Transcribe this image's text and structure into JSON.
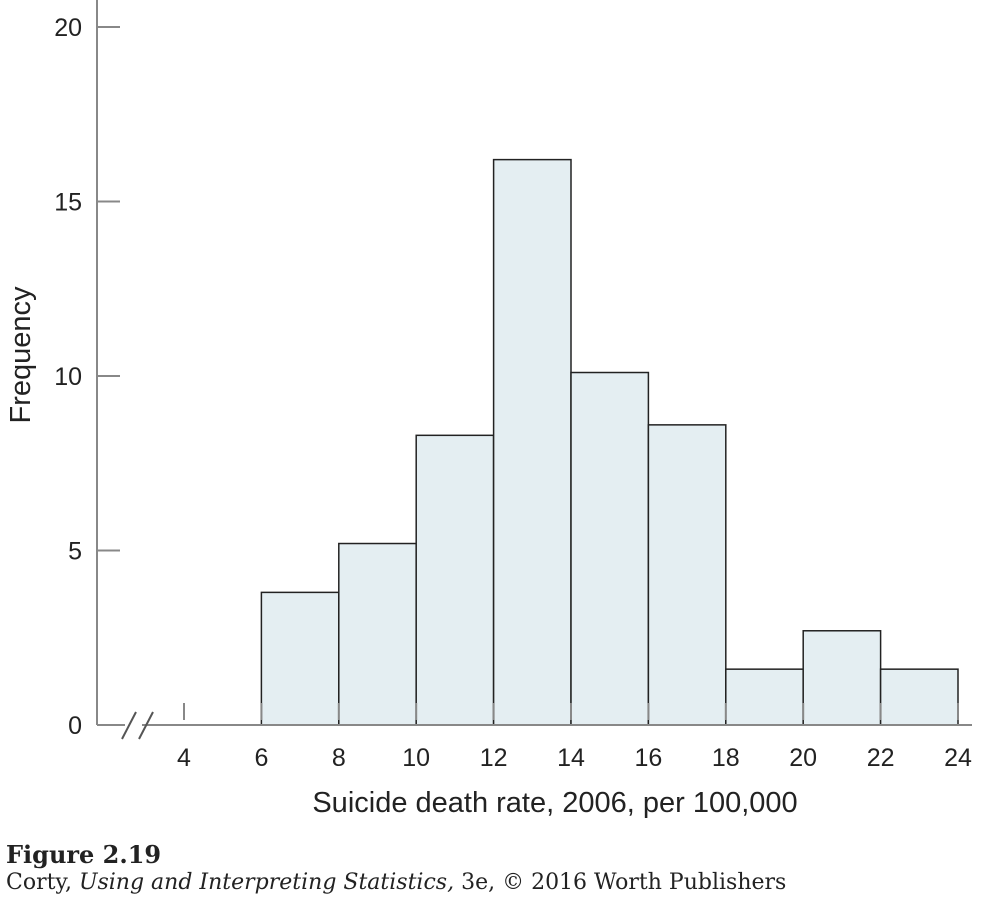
{
  "chart_data": {
    "type": "bar",
    "histogram": true,
    "bins": [
      {
        "start": 6,
        "end": 8,
        "frequency": 3.8
      },
      {
        "start": 8,
        "end": 10,
        "frequency": 5.2
      },
      {
        "start": 10,
        "end": 12,
        "frequency": 8.3
      },
      {
        "start": 12,
        "end": 14,
        "frequency": 16.2
      },
      {
        "start": 14,
        "end": 16,
        "frequency": 10.1
      },
      {
        "start": 16,
        "end": 18,
        "frequency": 8.6
      },
      {
        "start": 18,
        "end": 20,
        "frequency": 1.6
      },
      {
        "start": 20,
        "end": 22,
        "frequency": 2.7
      },
      {
        "start": 22,
        "end": 24,
        "frequency": 1.6
      }
    ],
    "x_ticks": [
      "4",
      "6",
      "8",
      "10",
      "12",
      "14",
      "16",
      "18",
      "20",
      "22",
      "24"
    ],
    "y_ticks": [
      "0",
      "5",
      "10",
      "15",
      "20"
    ],
    "xlabel": "Suicide death rate, 2006, per 100,000",
    "ylabel": "Frequency",
    "xlim": [
      4,
      24
    ],
    "ylim": [
      0,
      20
    ],
    "axis_break": true,
    "grid": false,
    "bar_color": "#e4eef2",
    "edge_color": "#222222"
  },
  "caption": {
    "figure_label": "Figure 2.19",
    "source_prefix": "Corty, ",
    "source_title": "Using and Interpreting Statistics,",
    "source_suffix": " 3e, © 2016 Worth Publishers"
  }
}
